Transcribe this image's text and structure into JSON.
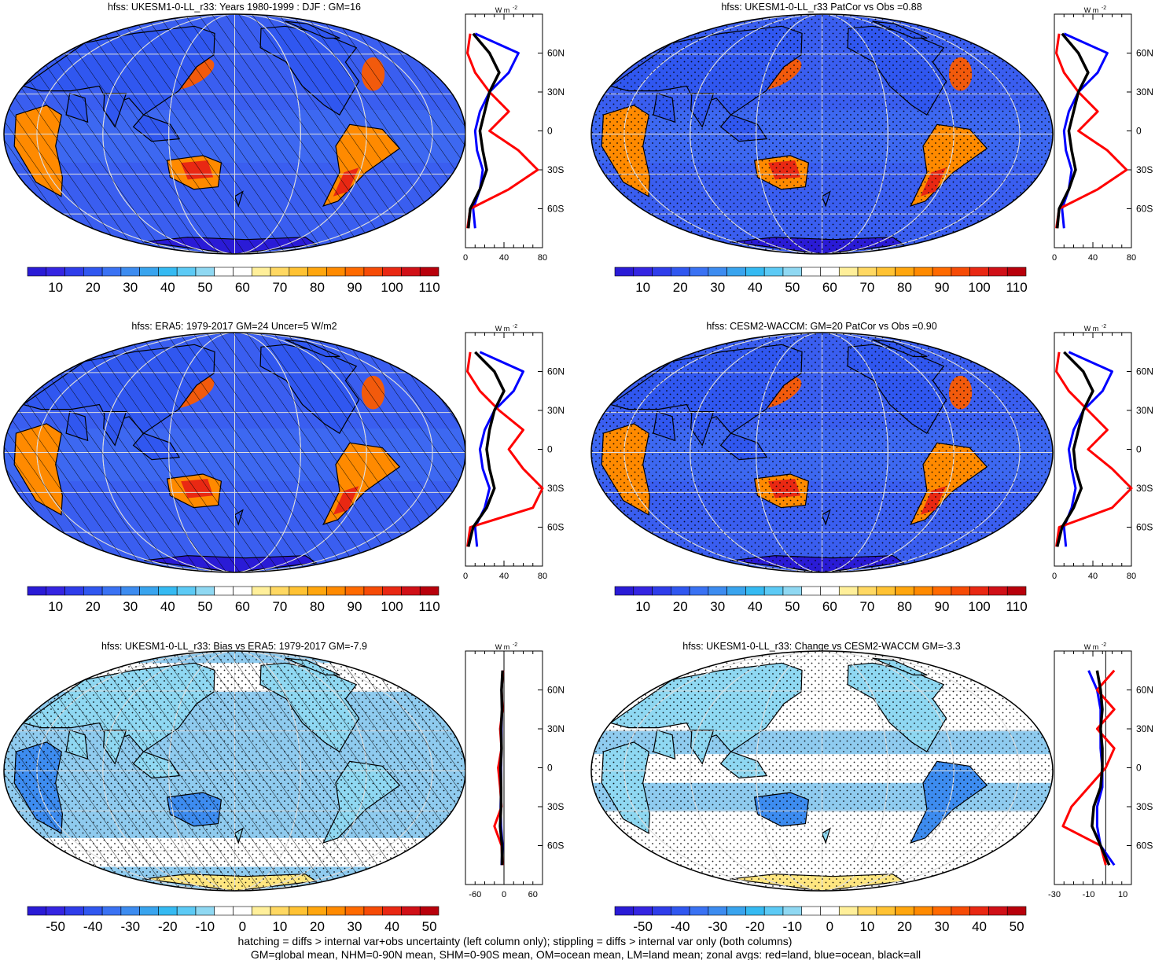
{
  "colors": {
    "seq_palette": [
      "#2a1bd6",
      "#3525e2",
      "#2f3dea",
      "#3057f0",
      "#3a72f3",
      "#3d8cf0",
      "#39a4ee",
      "#35baf2",
      "#5ccaf5",
      "#8fd8f2",
      "#ffffff",
      "#ffffff",
      "#ffef9a",
      "#ffd862",
      "#ffc233",
      "#ffa60e",
      "#ff8a00",
      "#ff6a00",
      "#f64b06",
      "#e92813",
      "#d01017",
      "#b8000b"
    ],
    "div_palette": [
      "#2a1bd6",
      "#3525e2",
      "#2f3dea",
      "#3057f0",
      "#3a72f3",
      "#3d8cf0",
      "#39a4ee",
      "#35baf2",
      "#5ccaf5",
      "#8fd8f2",
      "#ffffff",
      "#ffffff",
      "#ffef9a",
      "#ffd862",
      "#ffc233",
      "#ffa60e",
      "#ff8a00",
      "#ff6a00",
      "#f64b06",
      "#e92813",
      "#d01017",
      "#b8000b"
    ],
    "ocean_seq": "#3a5ef0",
    "ocean_bias": "#8fcbef",
    "ocean_change": "#ffffff",
    "land": "#ff7a1a",
    "zonal_land": "#ff0000",
    "zonal_ocean": "#0000ff",
    "zonal_all": "#000000"
  },
  "seq_labels": [
    "10",
    "20",
    "30",
    "40",
    "50",
    "60",
    "70",
    "80",
    "90",
    "100",
    "110"
  ],
  "div_labels": [
    "-50",
    "-40",
    "-30",
    "-20",
    "-10",
    "0",
    "10",
    "20",
    "30",
    "40",
    "50"
  ],
  "lat_labels": [
    "60N",
    "30N",
    "0",
    "30S",
    "60S"
  ],
  "zonal_unit": "W m",
  "zonal_unit_sup": "-2",
  "panels": [
    {
      "title": "hfss: UKESM1-0-LL_r33: Years 1980-1999 : DJF : GM=16",
      "kind": "seq",
      "hatch": true,
      "stipple": false,
      "zonal_ticks": [
        "0",
        "40",
        "80"
      ]
    },
    {
      "title": "hfss: UKESM1-0-LL_r33 PatCor vs Obs =0.88",
      "kind": "seq",
      "hatch": false,
      "stipple": true,
      "zonal_ticks": [
        "0",
        "40",
        "80"
      ]
    },
    {
      "title": "hfss: ERA5: 1979-2017 GM=24 Uncer=5 W/m2",
      "kind": "seq",
      "hatch": true,
      "stipple": false,
      "zonal_ticks": [
        "0",
        "40",
        "80"
      ]
    },
    {
      "title": "hfss: CESM2-WACCM: GM=20 PatCor vs Obs =0.90",
      "kind": "seq",
      "hatch": false,
      "stipple": true,
      "zonal_ticks": [
        "0",
        "40",
        "80"
      ]
    },
    {
      "title": "hfss: UKESM1-0-LL_r33: Bias vs ERA5: 1979-2017 GM=-7.9",
      "kind": "bias",
      "hatch": true,
      "stipple": true,
      "zonal_ticks": [
        "-60",
        "0",
        "60"
      ]
    },
    {
      "title": "hfss: UKESM1-0-LL_r33: Change vs CESM2-WACCM GM=-3.3",
      "kind": "change",
      "hatch": false,
      "stipple": true,
      "zonal_ticks": [
        "-30",
        "-10",
        "10"
      ]
    }
  ],
  "footer": [
    "hatching = diffs > internal var+obs uncertainty (left column only); stippling = diffs > internal var only (both columns)",
    "GM=global mean, NHM=0-90N mean, SHM=0-90S mean, OM=ocean mean, LM=land mean; zonal avgs: red=land, blue=ocean, black=all"
  ],
  "chart_data": [
    {
      "type": "heatmap",
      "title": "hfss: UKESM1-0-LL_r33: Years 1980-1999 : DJF : GM=16",
      "colorbar": [
        10,
        20,
        30,
        40,
        50,
        60,
        70,
        80,
        90,
        100,
        110
      ],
      "zonal_xlim": [
        0,
        80
      ],
      "zonal_lat": [
        75,
        60,
        45,
        30,
        15,
        0,
        -15,
        -30,
        -45,
        -60,
        -75
      ],
      "zonal_land": [
        5,
        2,
        10,
        25,
        45,
        25,
        55,
        75,
        45,
        5,
        2
      ],
      "zonal_ocean": [
        10,
        55,
        45,
        25,
        15,
        10,
        12,
        18,
        15,
        8,
        10
      ],
      "zonal_all": [
        8,
        25,
        35,
        25,
        20,
        15,
        18,
        22,
        15,
        5,
        3
      ]
    },
    {
      "type": "heatmap",
      "title": "hfss: UKESM1-0-LL_r33 PatCor vs Obs =0.88",
      "colorbar": [
        10,
        20,
        30,
        40,
        50,
        60,
        70,
        80,
        90,
        100,
        110
      ],
      "zonal_xlim": [
        0,
        80
      ],
      "zonal_lat": [
        75,
        60,
        45,
        30,
        15,
        0,
        -15,
        -30,
        -45,
        -60,
        -75
      ],
      "zonal_land": [
        5,
        2,
        10,
        25,
        45,
        25,
        55,
        75,
        45,
        5,
        2
      ],
      "zonal_ocean": [
        10,
        55,
        45,
        25,
        15,
        10,
        12,
        18,
        15,
        8,
        10
      ],
      "zonal_all": [
        8,
        25,
        35,
        25,
        20,
        15,
        18,
        22,
        15,
        5,
        3
      ]
    },
    {
      "type": "heatmap",
      "title": "hfss: ERA5: 1979-2017 GM=24 Uncer=5 W/m2",
      "colorbar": [
        10,
        20,
        30,
        40,
        50,
        60,
        70,
        80,
        90,
        100,
        110
      ],
      "zonal_xlim": [
        0,
        80
      ],
      "zonal_lat": [
        75,
        60,
        45,
        30,
        15,
        0,
        -15,
        -30,
        -45,
        -60,
        -75
      ],
      "zonal_land": [
        5,
        2,
        15,
        35,
        60,
        45,
        60,
        80,
        70,
        5,
        2
      ],
      "zonal_ocean": [
        15,
        60,
        50,
        30,
        20,
        15,
        18,
        25,
        20,
        10,
        12
      ],
      "zonal_all": [
        10,
        30,
        40,
        30,
        25,
        22,
        25,
        30,
        22,
        8,
        3
      ]
    },
    {
      "type": "heatmap",
      "title": "hfss: CESM2-WACCM: GM=20 PatCor vs Obs =0.90",
      "colorbar": [
        10,
        20,
        30,
        40,
        50,
        60,
        70,
        80,
        90,
        100,
        110
      ],
      "zonal_xlim": [
        0,
        80
      ],
      "zonal_lat": [
        75,
        60,
        45,
        30,
        15,
        0,
        -15,
        -30,
        -45,
        -60,
        -75
      ],
      "zonal_land": [
        5,
        2,
        15,
        35,
        55,
        35,
        60,
        80,
        60,
        5,
        2
      ],
      "zonal_ocean": [
        15,
        60,
        50,
        30,
        20,
        15,
        18,
        22,
        18,
        10,
        12
      ],
      "zonal_all": [
        10,
        30,
        40,
        30,
        25,
        20,
        22,
        28,
        20,
        8,
        3
      ]
    },
    {
      "type": "heatmap",
      "title": "hfss: UKESM1-0-LL_r33: Bias vs ERA5: 1979-2017 GM=-7.9",
      "colorbar": [
        -50,
        -40,
        -30,
        -20,
        -10,
        0,
        10,
        20,
        30,
        40,
        50
      ],
      "zonal_xlim": [
        -80,
        80
      ],
      "zonal_lat": [
        75,
        60,
        45,
        30,
        15,
        0,
        -15,
        -30,
        -45,
        -60,
        -75
      ],
      "zonal_land": [
        -2,
        -5,
        -3,
        -8,
        -5,
        -12,
        -8,
        -5,
        -20,
        -5,
        -3
      ],
      "zonal_ocean": [
        -3,
        -5,
        -4,
        -5,
        -5,
        -6,
        -6,
        -7,
        -6,
        -3,
        -5
      ],
      "zonal_all": [
        -3,
        -5,
        -4,
        -6,
        -5,
        -7,
        -6,
        -6,
        -8,
        -4,
        -4
      ]
    },
    {
      "type": "heatmap",
      "title": "hfss: UKESM1-0-LL_r33: Change vs CESM2-WACCM GM=-3.3",
      "colorbar": [
        -50,
        -40,
        -30,
        -20,
        -10,
        0,
        10,
        20,
        30,
        40,
        50
      ],
      "zonal_xlim": [
        -30,
        15
      ],
      "zonal_lat": [
        75,
        60,
        45,
        30,
        15,
        0,
        -15,
        -30,
        -45,
        -60,
        -75
      ],
      "zonal_land": [
        5,
        -5,
        5,
        -5,
        5,
        0,
        -10,
        -20,
        -25,
        -3,
        0
      ],
      "zonal_ocean": [
        -10,
        -5,
        -3,
        -3,
        -3,
        -2,
        -2,
        -5,
        -5,
        -3,
        5
      ],
      "zonal_all": [
        -5,
        -3,
        -2,
        -3,
        -2,
        -2,
        -3,
        -7,
        -8,
        -3,
        2
      ]
    }
  ]
}
